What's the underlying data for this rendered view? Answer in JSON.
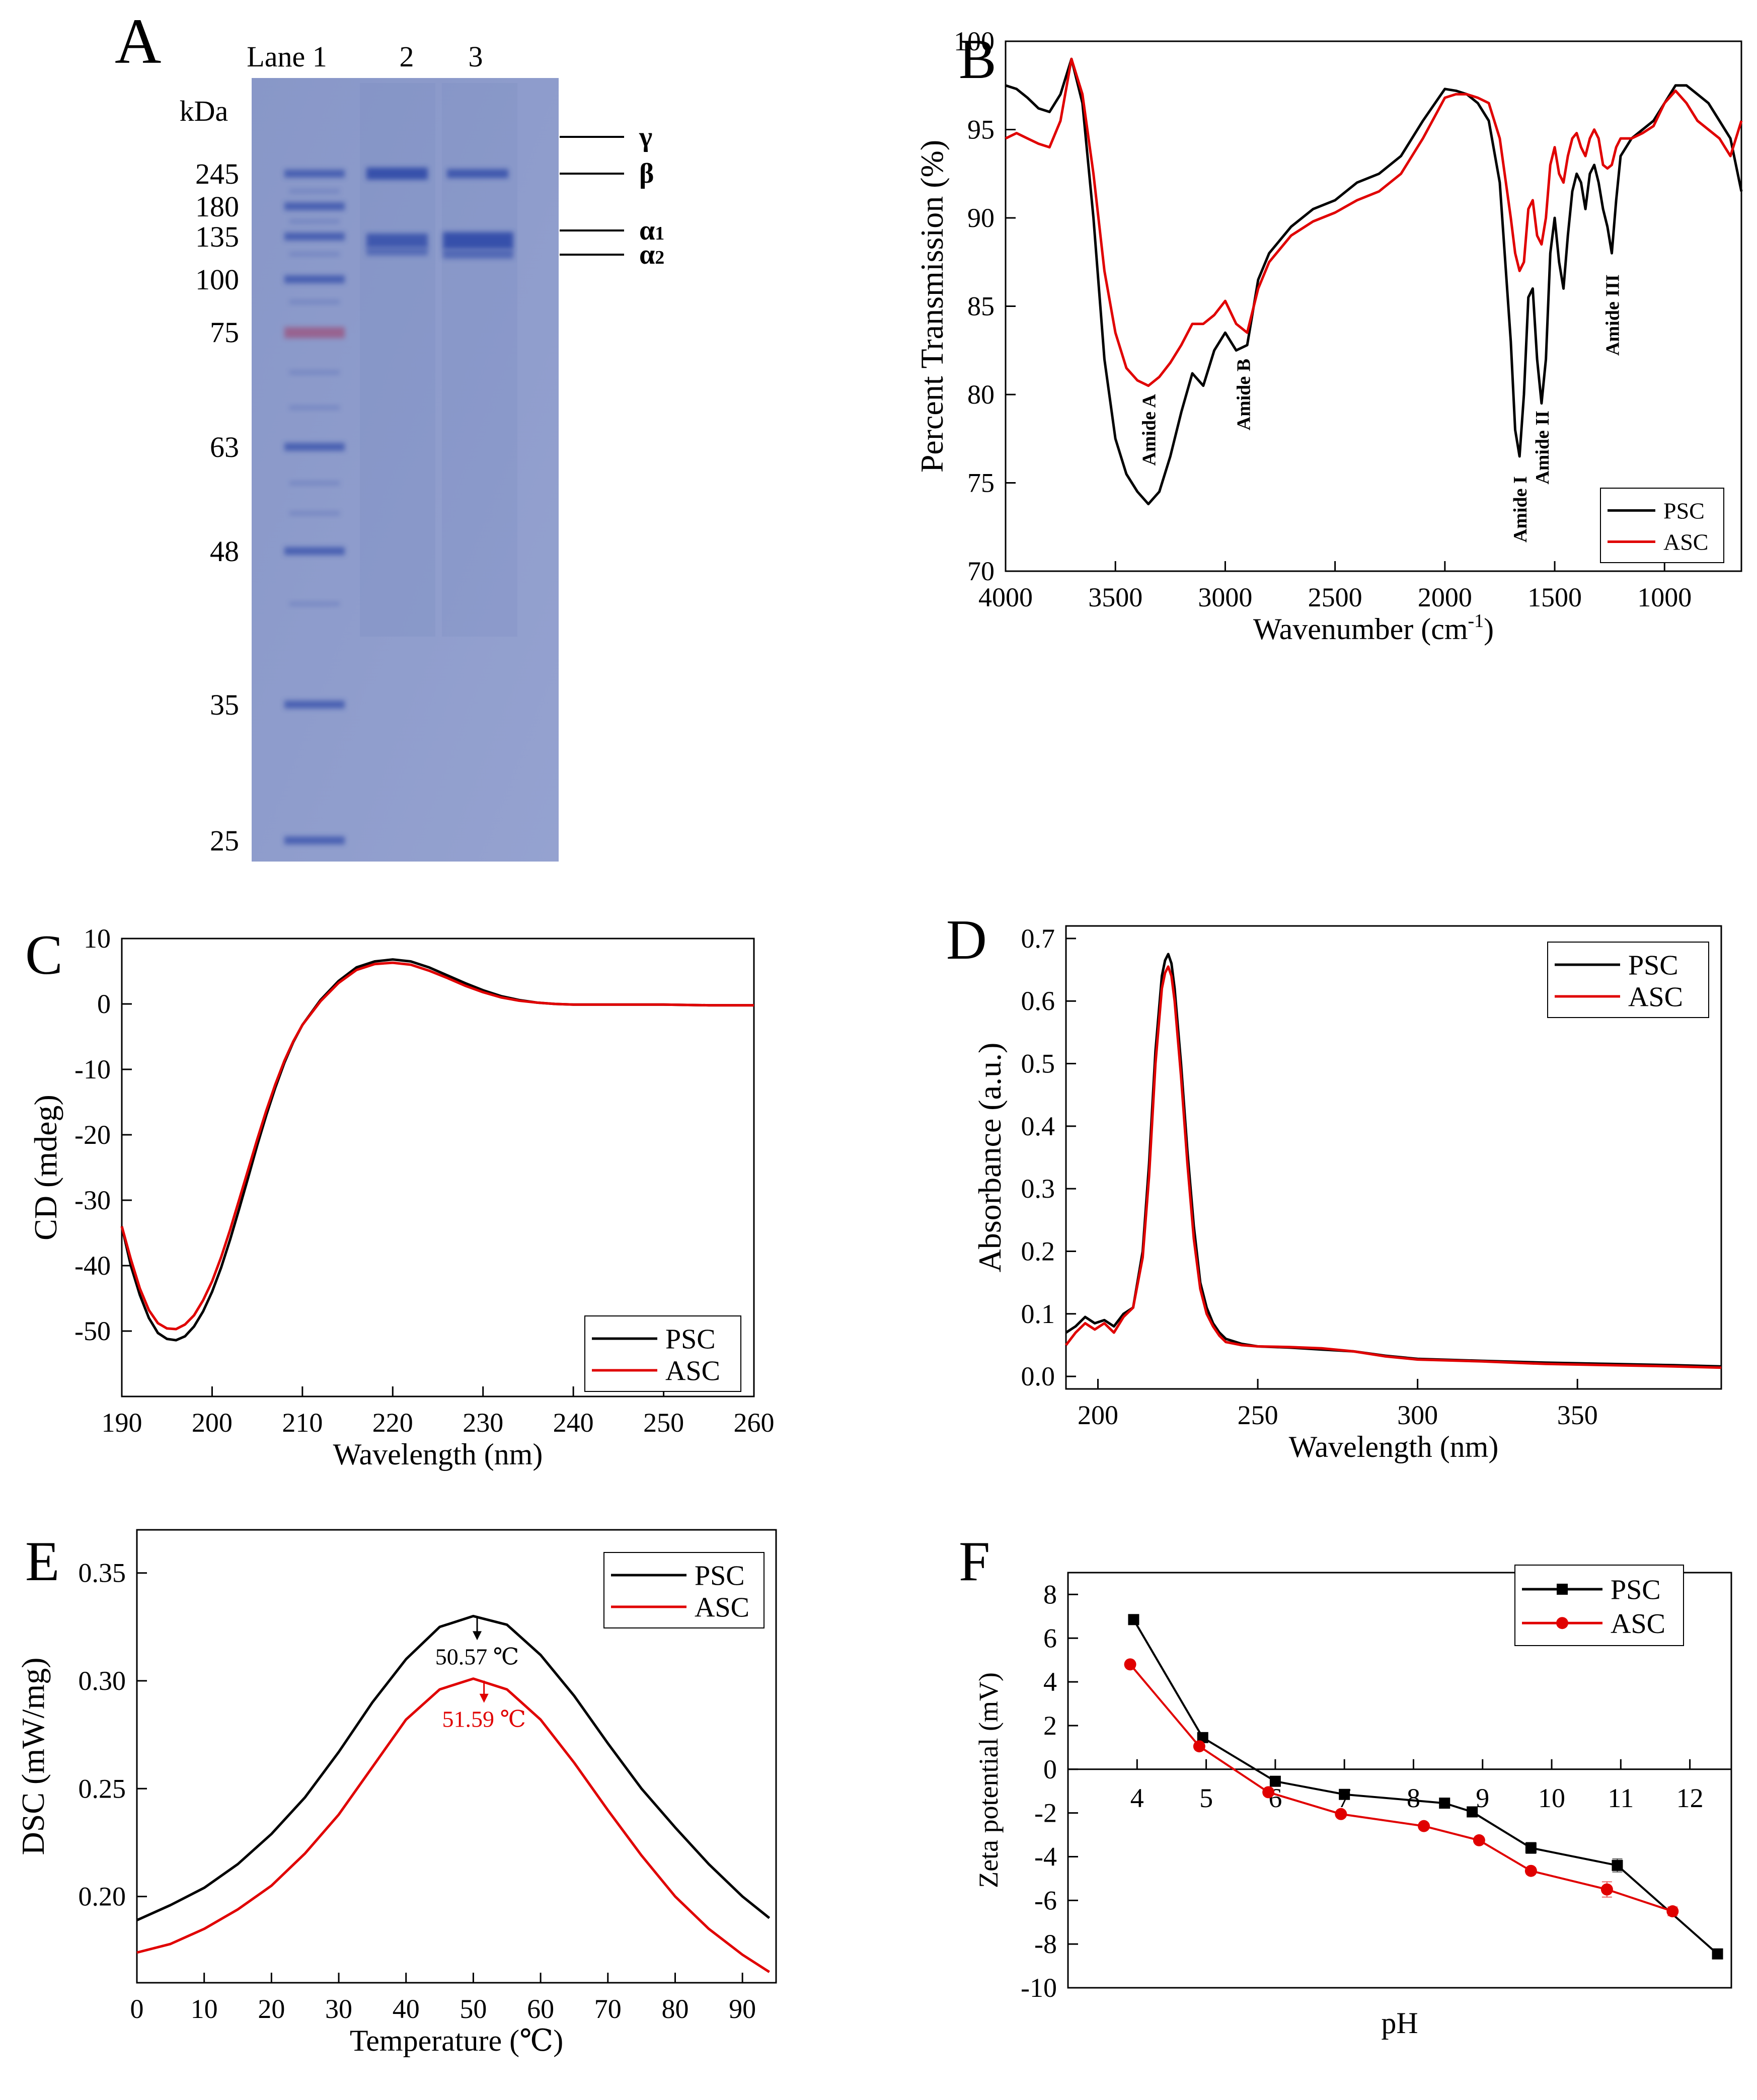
{
  "chart_data": [
    {
      "panel": "A",
      "type": "table",
      "title": "A",
      "lane_labels": [
        "Lane 1",
        "2",
        "3"
      ],
      "unit_label": "kDa",
      "marker_kda": [
        "245",
        "180",
        "135",
        "100",
        "75",
        "63",
        "48",
        "35",
        "25"
      ],
      "chain_labels": [
        "γ",
        "β",
        "α1",
        "α2"
      ],
      "colors": {
        "gel": "#8f9ccc",
        "band": "#2e48a8",
        "marker75": "#9a5a86"
      }
    },
    {
      "panel": "B",
      "type": "line",
      "title": "B",
      "xlabel": "Wavenumber (cm-1)",
      "ylabel": "Percent Transmission (%)",
      "xlim": [
        4000,
        650
      ],
      "ylim": [
        70,
        100
      ],
      "xticks": [
        4000,
        3500,
        3000,
        2500,
        2000,
        1500,
        1000
      ],
      "yticks": [
        70,
        75,
        80,
        85,
        90,
        95,
        100
      ],
      "annotations": [
        {
          "text": "Amide A",
          "x": 3350,
          "y": 78
        },
        {
          "text": "Amide B",
          "x": 2920,
          "y": 80
        },
        {
          "text": "Amide I",
          "x": 1660,
          "y": 73.5
        },
        {
          "text": "Amide II",
          "x": 1560,
          "y": 77
        },
        {
          "text": "Amide III",
          "x": 1240,
          "y": 84.5
        }
      ],
      "legend": [
        "PSC",
        "ASC"
      ],
      "series": [
        {
          "name": "PSC",
          "color": "#000000",
          "x": [
            4000,
            3950,
            3900,
            3850,
            3800,
            3750,
            3700,
            3650,
            3600,
            3550,
            3500,
            3450,
            3400,
            3350,
            3300,
            3250,
            3200,
            3150,
            3100,
            3050,
            3000,
            2950,
            2900,
            2850,
            2800,
            2700,
            2600,
            2500,
            2400,
            2300,
            2200,
            2100,
            2000,
            1950,
            1900,
            1850,
            1800,
            1750,
            1700,
            1680,
            1660,
            1640,
            1620,
            1600,
            1580,
            1560,
            1540,
            1520,
            1500,
            1480,
            1460,
            1440,
            1420,
            1400,
            1380,
            1360,
            1340,
            1320,
            1300,
            1280,
            1260,
            1240,
            1220,
            1200,
            1150,
            1100,
            1050,
            1000,
            950,
            900,
            850,
            800,
            750,
            700,
            650
          ],
          "y": [
            97.5,
            97.3,
            96.8,
            96.2,
            96.0,
            97.0,
            99.0,
            96.5,
            90.0,
            82.0,
            77.5,
            75.5,
            74.5,
            73.8,
            74.5,
            76.5,
            79.0,
            81.2,
            80.5,
            82.5,
            83.5,
            82.5,
            82.8,
            86.5,
            88.0,
            89.5,
            90.5,
            91.0,
            92.0,
            92.5,
            93.5,
            95.5,
            97.3,
            97.2,
            97.0,
            96.5,
            95.5,
            92.0,
            83.0,
            78.0,
            76.5,
            80.0,
            85.5,
            86.0,
            82.0,
            79.5,
            82.0,
            88.0,
            90.0,
            87.5,
            86.0,
            89.0,
            91.5,
            92.5,
            92.0,
            90.5,
            92.5,
            93.0,
            92.0,
            90.5,
            89.5,
            88.0,
            91.0,
            93.5,
            94.5,
            95.0,
            95.5,
            96.5,
            97.5,
            97.5,
            97.0,
            96.5,
            95.5,
            94.5,
            91.5
          ]
        },
        {
          "name": "ASC",
          "color": "#e00000",
          "x": [
            4000,
            3950,
            3900,
            3850,
            3800,
            3750,
            3700,
            3650,
            3600,
            3550,
            3500,
            3450,
            3400,
            3350,
            3300,
            3250,
            3200,
            3150,
            3100,
            3050,
            3000,
            2950,
            2900,
            2850,
            2800,
            2700,
            2600,
            2500,
            2400,
            2300,
            2200,
            2100,
            2000,
            1950,
            1900,
            1850,
            1800,
            1750,
            1700,
            1680,
            1660,
            1640,
            1620,
            1600,
            1580,
            1560,
            1540,
            1520,
            1500,
            1480,
            1460,
            1440,
            1420,
            1400,
            1380,
            1360,
            1340,
            1320,
            1300,
            1280,
            1260,
            1240,
            1220,
            1200,
            1150,
            1100,
            1050,
            1000,
            950,
            900,
            850,
            800,
            750,
            700,
            650
          ],
          "y": [
            94.5,
            94.8,
            94.5,
            94.2,
            94.0,
            95.5,
            99.0,
            97.0,
            92.5,
            87.0,
            83.5,
            81.5,
            80.8,
            80.5,
            81.0,
            81.8,
            82.8,
            84.0,
            84.0,
            84.5,
            85.3,
            84.0,
            83.5,
            86.0,
            87.5,
            89.0,
            89.8,
            90.3,
            91.0,
            91.5,
            92.5,
            94.5,
            96.8,
            97.0,
            97.0,
            96.8,
            96.5,
            94.5,
            90.0,
            88.0,
            87.0,
            87.5,
            90.5,
            91.0,
            89.0,
            88.5,
            90.0,
            93.0,
            94.0,
            92.5,
            92.0,
            93.5,
            94.5,
            94.8,
            94.0,
            93.5,
            94.5,
            95.0,
            94.5,
            93.0,
            92.8,
            93.0,
            94.0,
            94.5,
            94.5,
            94.8,
            95.2,
            96.5,
            97.2,
            96.5,
            95.5,
            95.0,
            94.5,
            93.5,
            95.5
          ]
        }
      ]
    },
    {
      "panel": "C",
      "type": "line",
      "title": "C",
      "xlabel": "Wavelength (nm)",
      "ylabel": "CD (mdeg)",
      "xlim": [
        190,
        260
      ],
      "ylim": [
        -60,
        10
      ],
      "xticks": [
        190,
        200,
        210,
        220,
        230,
        240,
        250,
        260
      ],
      "yticks": [
        -50,
        -40,
        -30,
        -20,
        -10,
        0,
        10
      ],
      "legend": [
        "PSC",
        "ASC"
      ],
      "series": [
        {
          "name": "PSC",
          "color": "#000000",
          "x": [
            190,
            191,
            192,
            193,
            194,
            195,
            196,
            197,
            198,
            199,
            200,
            201,
            202,
            203,
            204,
            205,
            206,
            207,
            208,
            209,
            210,
            212,
            214,
            216,
            218,
            220,
            222,
            224,
            226,
            228,
            230,
            232,
            234,
            236,
            238,
            240,
            245,
            250,
            255,
            260
          ],
          "y": [
            -34,
            -40,
            -44.5,
            -48,
            -50.3,
            -51.2,
            -51.4,
            -50.8,
            -49.3,
            -47.0,
            -44.0,
            -40.3,
            -36.0,
            -31.3,
            -26.5,
            -21.6,
            -17.0,
            -12.8,
            -9.0,
            -5.8,
            -3.2,
            0.6,
            3.5,
            5.6,
            6.5,
            6.8,
            6.5,
            5.6,
            4.4,
            3.2,
            2.1,
            1.2,
            0.6,
            0.2,
            0.0,
            -0.1,
            -0.1,
            -0.1,
            -0.2,
            -0.2
          ]
        },
        {
          "name": "ASC",
          "color": "#e00000",
          "x": [
            190,
            191,
            192,
            193,
            194,
            195,
            196,
            197,
            198,
            199,
            200,
            201,
            202,
            203,
            204,
            205,
            206,
            207,
            208,
            209,
            210,
            212,
            214,
            216,
            218,
            220,
            222,
            224,
            226,
            228,
            230,
            232,
            234,
            236,
            238,
            240,
            245,
            250,
            255,
            260
          ],
          "y": [
            -34,
            -39,
            -43.5,
            -46.8,
            -48.8,
            -49.6,
            -49.7,
            -49.0,
            -47.6,
            -45.3,
            -42.4,
            -38.7,
            -34.5,
            -29.9,
            -25.3,
            -20.7,
            -16.3,
            -12.3,
            -8.7,
            -5.7,
            -3.2,
            0.4,
            3.2,
            5.2,
            6.1,
            6.3,
            6.0,
            5.1,
            4.0,
            2.8,
            1.8,
            1.0,
            0.5,
            0.2,
            0.0,
            -0.1,
            -0.1,
            -0.1,
            -0.2,
            -0.2
          ]
        }
      ]
    },
    {
      "panel": "D",
      "type": "line",
      "title": "D",
      "xlabel": "Wavelength (nm)",
      "ylabel": "Absorbance (a.u.)",
      "xlim": [
        190,
        395
      ],
      "ylim": [
        -0.02,
        0.72
      ],
      "xticks": [
        200,
        250,
        300,
        350
      ],
      "yticks": [
        0.0,
        0.1,
        0.2,
        0.3,
        0.4,
        0.5,
        0.6,
        0.7
      ],
      "legend": [
        "PSC",
        "ASC"
      ],
      "series": [
        {
          "name": "PSC",
          "color": "#000000",
          "x": [
            190,
            193,
            196,
            199,
            202,
            205,
            208,
            211,
            214,
            216,
            218,
            220,
            221,
            222,
            223,
            224,
            226,
            228,
            230,
            232,
            234,
            236,
            238,
            240,
            245,
            250,
            260,
            270,
            280,
            290,
            300,
            320,
            340,
            360,
            380,
            395
          ],
          "y": [
            0.07,
            0.08,
            0.095,
            0.085,
            0.09,
            0.08,
            0.1,
            0.11,
            0.2,
            0.34,
            0.52,
            0.64,
            0.665,
            0.675,
            0.66,
            0.62,
            0.5,
            0.36,
            0.24,
            0.15,
            0.11,
            0.085,
            0.07,
            0.06,
            0.052,
            0.048,
            0.046,
            0.043,
            0.04,
            0.033,
            0.028,
            0.025,
            0.022,
            0.02,
            0.018,
            0.016
          ]
        },
        {
          "name": "ASC",
          "color": "#e00000",
          "x": [
            190,
            193,
            196,
            199,
            202,
            205,
            208,
            211,
            214,
            216,
            218,
            220,
            221,
            222,
            223,
            224,
            226,
            228,
            230,
            232,
            234,
            236,
            238,
            240,
            245,
            250,
            260,
            270,
            280,
            290,
            300,
            320,
            340,
            360,
            380,
            395
          ],
          "y": [
            0.05,
            0.07,
            0.085,
            0.075,
            0.085,
            0.07,
            0.095,
            0.11,
            0.19,
            0.32,
            0.5,
            0.62,
            0.645,
            0.655,
            0.64,
            0.6,
            0.48,
            0.34,
            0.22,
            0.14,
            0.1,
            0.08,
            0.065,
            0.055,
            0.05,
            0.048,
            0.047,
            0.045,
            0.04,
            0.032,
            0.027,
            0.024,
            0.02,
            0.018,
            0.016,
            0.014
          ]
        }
      ]
    },
    {
      "panel": "E",
      "type": "line",
      "title": "E",
      "xlabel": "Temperature (℃)",
      "ylabel": "DSC (mW/mg)",
      "xlim": [
        0,
        95
      ],
      "ylim": [
        0.16,
        0.37
      ],
      "xticks": [
        0,
        10,
        20,
        30,
        40,
        50,
        60,
        70,
        80,
        90
      ],
      "yticks": [
        0.2,
        0.25,
        0.3,
        0.35
      ],
      "annotations": [
        {
          "text": "50.57 ℃",
          "x": 50.57,
          "y": 0.314
        },
        {
          "text": "51.59 ℃",
          "x": 51.59,
          "y": 0.285
        }
      ],
      "legend": [
        "PSC",
        "ASC"
      ],
      "series": [
        {
          "name": "PSC",
          "color": "#000000",
          "x": [
            0,
            5,
            10,
            15,
            20,
            25,
            30,
            35,
            40,
            45,
            50,
            55,
            60,
            65,
            70,
            75,
            80,
            85,
            90,
            94
          ],
          "y": [
            0.189,
            0.196,
            0.204,
            0.215,
            0.229,
            0.246,
            0.267,
            0.29,
            0.31,
            0.325,
            0.33,
            0.326,
            0.312,
            0.293,
            0.271,
            0.25,
            0.232,
            0.215,
            0.2,
            0.19
          ]
        },
        {
          "name": "ASC",
          "color": "#e00000",
          "x": [
            0,
            5,
            10,
            15,
            20,
            25,
            30,
            35,
            40,
            45,
            50,
            55,
            60,
            65,
            70,
            75,
            80,
            85,
            90,
            94
          ],
          "y": [
            0.174,
            0.178,
            0.185,
            0.194,
            0.205,
            0.22,
            0.238,
            0.26,
            0.282,
            0.296,
            0.301,
            0.296,
            0.282,
            0.262,
            0.24,
            0.219,
            0.2,
            0.185,
            0.173,
            0.165
          ]
        }
      ]
    },
    {
      "panel": "F",
      "type": "line",
      "title": "F",
      "xlabel": "pH",
      "ylabel": "Zeta potential (mV)",
      "xlim": [
        3.0,
        12.6
      ],
      "ylim": [
        -10,
        9
      ],
      "xticks": [
        4,
        5,
        6,
        7,
        8,
        9,
        10,
        11,
        12
      ],
      "yticks": [
        -10,
        -8,
        -6,
        -4,
        -2,
        0,
        2,
        4,
        6,
        8
      ],
      "legend": [
        "PSC",
        "ASC"
      ],
      "series": [
        {
          "name": "PSC",
          "color": "#000000",
          "marker": "square",
          "x": [
            3.95,
            4.95,
            6.0,
            7.0,
            8.45,
            8.85,
            9.7,
            10.95,
            12.4
          ],
          "y": [
            6.85,
            1.45,
            -0.55,
            -1.15,
            -1.55,
            -1.95,
            -3.6,
            -4.4,
            -8.45
          ],
          "err": [
            0.2,
            0.15,
            0.1,
            0.2,
            0.1,
            0.1,
            0.25,
            0.3,
            0.05
          ]
        },
        {
          "name": "ASC",
          "color": "#e00000",
          "marker": "circle",
          "x": [
            3.9,
            4.9,
            5.9,
            6.95,
            8.15,
            8.95,
            9.7,
            10.8,
            11.75
          ],
          "y": [
            4.8,
            1.05,
            -1.05,
            -2.05,
            -2.6,
            -3.25,
            -4.65,
            -5.5,
            -6.5
          ],
          "err": [
            0.1,
            0.1,
            0.15,
            0.1,
            0.1,
            0.1,
            0.15,
            0.35,
            0.2
          ]
        }
      ]
    }
  ]
}
